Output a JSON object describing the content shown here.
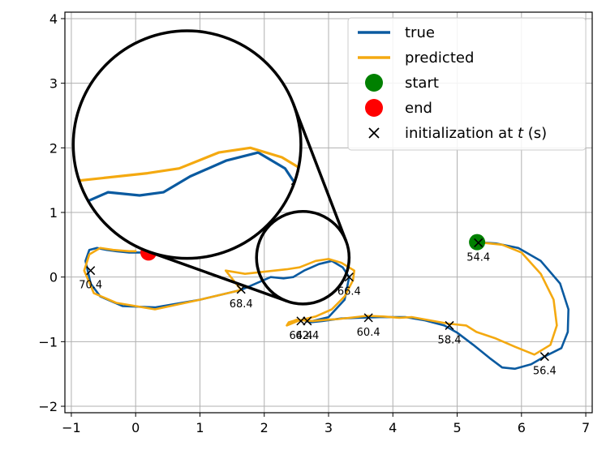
{
  "chart_data": {
    "type": "line",
    "title": "",
    "xlabel": "",
    "ylabel": "",
    "xlim": [
      -1.1,
      7.1
    ],
    "ylim": [
      -2.1,
      4.1
    ],
    "xticks": [
      -1,
      0,
      1,
      2,
      3,
      4,
      5,
      6,
      7
    ],
    "yticks": [
      -2,
      -1,
      0,
      1,
      2,
      3,
      4
    ],
    "grid": true,
    "legend_position": "top-right",
    "series": [
      {
        "name": "true",
        "color": "#0a5aa0",
        "x": [
          5.31,
          5.6,
          5.95,
          6.3,
          6.6,
          6.73,
          6.72,
          6.62,
          6.36,
          6.15,
          5.9,
          5.7,
          5.5,
          5.25,
          5.0,
          4.8,
          4.5,
          4.2,
          3.8,
          3.45,
          3.2,
          3.05,
          2.9,
          2.72,
          2.62,
          2.75,
          3.0,
          3.25,
          3.32,
          3.22,
          3.05,
          2.85,
          2.62,
          2.45,
          2.3,
          2.1,
          1.64,
          1.0,
          0.3,
          -0.2,
          -0.55,
          -0.7,
          -0.78,
          -0.72,
          -0.6,
          -0.45,
          -0.3,
          -0.1,
          0.2
        ],
        "y": [
          0.54,
          0.52,
          0.45,
          0.25,
          -0.1,
          -0.5,
          -0.85,
          -1.1,
          -1.23,
          -1.35,
          -1.42,
          -1.4,
          -1.25,
          -1.05,
          -0.86,
          -0.75,
          -0.67,
          -0.62,
          -0.62,
          -0.63,
          -0.64,
          -0.66,
          -0.68,
          -0.7,
          -0.67,
          -0.68,
          -0.62,
          -0.35,
          0.0,
          0.15,
          0.25,
          0.2,
          0.1,
          0.0,
          -0.02,
          0.0,
          -0.2,
          -0.35,
          -0.47,
          -0.45,
          -0.3,
          -0.1,
          0.25,
          0.42,
          0.45,
          0.42,
          0.4,
          0.38,
          0.38
        ]
      },
      {
        "name": "predicted",
        "color": "#f4a910",
        "x": [
          5.31,
          5.7,
          6.0,
          6.3,
          6.5,
          6.55,
          6.45,
          6.2,
          5.9,
          5.6,
          5.3,
          5.14,
          4.85,
          4.3,
          4.1,
          3.85,
          3.6,
          3.15,
          2.98,
          2.75,
          2.6,
          2.5,
          2.45,
          2.38,
          2.35,
          2.55,
          2.8,
          3.05,
          3.25,
          3.38,
          3.4,
          3.2,
          3.0,
          2.8,
          2.55,
          2.35,
          1.7,
          1.4,
          1.64,
          1.0,
          0.3,
          -0.3,
          -0.65,
          -0.8,
          -0.72,
          -0.55,
          -0.35,
          -0.1,
          0.0
        ],
        "y": [
          0.54,
          0.5,
          0.38,
          0.05,
          -0.35,
          -0.75,
          -1.05,
          -1.2,
          -1.08,
          -0.95,
          -0.85,
          -0.75,
          -0.72,
          -0.62,
          -0.63,
          -0.61,
          -0.6,
          -0.65,
          -0.66,
          -0.68,
          -0.67,
          -0.66,
          -0.68,
          -0.7,
          -0.75,
          -0.67,
          -0.61,
          -0.5,
          -0.3,
          -0.05,
          0.1,
          0.22,
          0.28,
          0.25,
          0.15,
          0.12,
          0.05,
          0.1,
          -0.2,
          -0.35,
          -0.5,
          -0.4,
          -0.25,
          0.1,
          0.35,
          0.45,
          0.42,
          0.4,
          0.4
        ]
      }
    ],
    "markers": {
      "start": {
        "label": "start",
        "x": 5.31,
        "y": 0.54,
        "color": "#008000"
      },
      "end": {
        "label": "end",
        "x": 0.2,
        "y": 0.38,
        "color": "#ff0000"
      },
      "initialization": {
        "label": "initialization at t (s)",
        "points": [
          {
            "x": 5.33,
            "y": 0.53,
            "text": "54.4"
          },
          {
            "x": 6.36,
            "y": -1.23,
            "text": "56.4"
          },
          {
            "x": 4.88,
            "y": -0.75,
            "text": "58.4"
          },
          {
            "x": 3.62,
            "y": -0.63,
            "text": "60.4"
          },
          {
            "x": 2.67,
            "y": -0.68,
            "text": "62.4"
          },
          {
            "x": 2.57,
            "y": -0.68,
            "text": "64.4"
          },
          {
            "x": 3.32,
            "y": 0.0,
            "text": "66.4"
          },
          {
            "x": 1.64,
            "y": -0.19,
            "text": "68.4"
          },
          {
            "x": -0.7,
            "y": 0.1,
            "text": "70.4"
          }
        ]
      }
    },
    "inset": {
      "source_center": [
        2.6,
        0.3
      ],
      "source_radius": 0.72,
      "zoom_center": [
        0.8,
        2.05
      ],
      "zoom_radius": 1.77
    },
    "legend": [
      {
        "label": "true",
        "kind": "line",
        "color": "#0a5aa0"
      },
      {
        "label": "predicted",
        "kind": "line",
        "color": "#f4a910"
      },
      {
        "label": "start",
        "kind": "dot",
        "color": "#008000"
      },
      {
        "label": "end",
        "kind": "dot",
        "color": "#ff0000"
      },
      {
        "label": "initialization at ",
        "label_italic": "t",
        "label_suffix": " (s)",
        "kind": "x",
        "color": "#000000"
      }
    ]
  }
}
